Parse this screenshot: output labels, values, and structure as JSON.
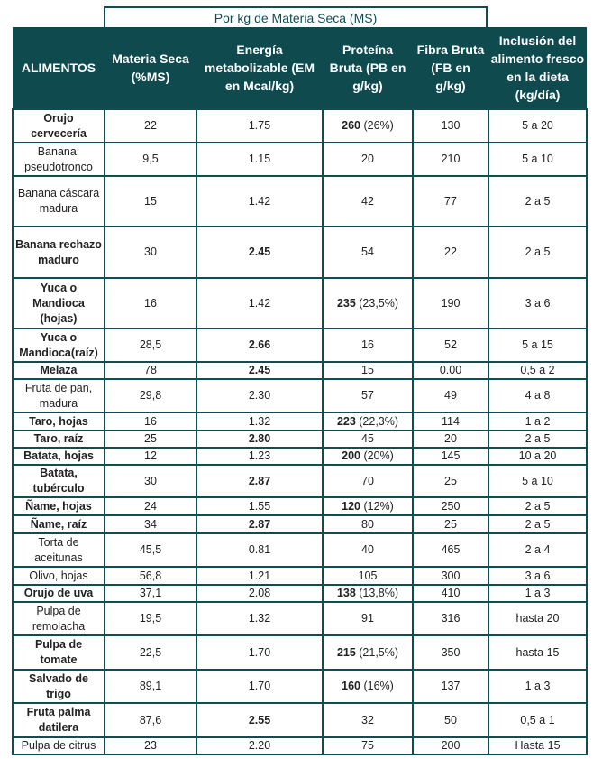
{
  "super_header": "Por kg de Materia Seca (MS)",
  "columns": [
    "ALIMENTOS",
    "Materia Seca (%MS)",
    "Energía metabolizable (EM en Mcal/kg)",
    "Proteína Bruta (PB en g/kg)",
    "Fibra Bruta (FB en g/kg)",
    "Inclusión del alimento fresco en la dieta (kg/día)"
  ],
  "colors": {
    "header_bg": "#0f4a4f",
    "border": "#0f4d52"
  },
  "rows": [
    {
      "name": "Orujo cervecería",
      "name_bold": true,
      "ms": "22",
      "em": "1.75",
      "em_bold": false,
      "pb": "260",
      "pb_bold": true,
      "pb_pct": " (26%)",
      "fb": "130",
      "inc": "5 a 20"
    },
    {
      "name": "Banana: pseudotronco",
      "name_bold": false,
      "ms": "9,5",
      "em": "1.15",
      "em_bold": false,
      "pb": "20",
      "pb_bold": false,
      "pb_pct": "",
      "fb": "210",
      "inc": "5 a 10"
    },
    {
      "name": "Banana cáscara madura",
      "name_bold": false,
      "ms": "15",
      "em": "1.42",
      "em_bold": false,
      "pb": "42",
      "pb_bold": false,
      "pb_pct": "",
      "fb": "77",
      "inc": "2 a 5"
    },
    {
      "name": "Banana rechazo maduro",
      "name_bold": true,
      "ms": "30",
      "em": "2.45",
      "em_bold": true,
      "pb": "54",
      "pb_bold": false,
      "pb_pct": "",
      "fb": "22",
      "inc": "2 a 5"
    },
    {
      "name": "Yuca o Mandioca (hojas)",
      "name_bold": true,
      "ms": "16",
      "em": "1.42",
      "em_bold": false,
      "pb": "235",
      "pb_bold": true,
      "pb_pct": " (23,5%)",
      "fb": "190",
      "inc": "3 a 6"
    },
    {
      "name": "Yuca o Mandioca(raíz)",
      "name_bold": true,
      "ms": "28,5",
      "em": "2.66",
      "em_bold": true,
      "pb": "16",
      "pb_bold": false,
      "pb_pct": "",
      "fb": "52",
      "inc": "5 a 15"
    },
    {
      "name": "Melaza",
      "name_bold": true,
      "ms": "78",
      "em": "2.45",
      "em_bold": true,
      "pb": "15",
      "pb_bold": false,
      "pb_pct": "",
      "fb": "0.00",
      "inc": "0,5 a 2"
    },
    {
      "name": "Fruta de pan, madura",
      "name_bold": false,
      "ms": "29,8",
      "em": "2.30",
      "em_bold": false,
      "pb": "57",
      "pb_bold": false,
      "pb_pct": "",
      "fb": "49",
      "inc": "4 a 8"
    },
    {
      "name": "Taro, hojas",
      "name_bold": true,
      "ms": "16",
      "em": "1.32",
      "em_bold": false,
      "pb": "223",
      "pb_bold": true,
      "pb_pct": " (22,3%)",
      "fb": "114",
      "inc": "1 a 2"
    },
    {
      "name": "Taro, raíz",
      "name_bold": true,
      "ms": "25",
      "em": "2.80",
      "em_bold": true,
      "pb": "45",
      "pb_bold": false,
      "pb_pct": "",
      "fb": "20",
      "inc": "2 a 5"
    },
    {
      "name": "Batata, hojas",
      "name_bold": true,
      "ms": "12",
      "em": "1.23",
      "em_bold": false,
      "pb": "200",
      "pb_bold": true,
      "pb_pct": " (20%)",
      "fb": "145",
      "inc": "10 a 20"
    },
    {
      "name": "Batata, tubérculo",
      "name_bold": true,
      "ms": "30",
      "em": "2.87",
      "em_bold": true,
      "pb": "70",
      "pb_bold": false,
      "pb_pct": "",
      "fb": "25",
      "inc": "5 a 10"
    },
    {
      "name": "Ñame, hojas",
      "name_bold": true,
      "ms": "24",
      "em": "1.55",
      "em_bold": false,
      "pb": "120",
      "pb_bold": true,
      "pb_pct": " (12%)",
      "fb": "250",
      "inc": "2 a 5"
    },
    {
      "name": "Ñame, raíz",
      "name_bold": true,
      "ms": "34",
      "em": "2.87",
      "em_bold": true,
      "pb": "80",
      "pb_bold": false,
      "pb_pct": "",
      "fb": "25",
      "inc": "2 a 5"
    },
    {
      "name": "Torta de aceitunas",
      "name_bold": false,
      "ms": "45,5",
      "em": "0.81",
      "em_bold": false,
      "pb": "40",
      "pb_bold": false,
      "pb_pct": "",
      "fb": "465",
      "inc": "2 a 4"
    },
    {
      "name": "Olivo, hojas",
      "name_bold": false,
      "ms": "56,8",
      "em": "1.21",
      "em_bold": false,
      "pb": "105",
      "pb_bold": false,
      "pb_pct": "",
      "fb": "300",
      "inc": "3 a 6"
    },
    {
      "name": "Orujo de uva",
      "name_bold": true,
      "ms": "37,1",
      "em": "2.08",
      "em_bold": false,
      "pb": "138",
      "pb_bold": true,
      "pb_pct": " (13,8%)",
      "fb": "410",
      "inc": "1 a 3"
    },
    {
      "name": "Pulpa de remolacha",
      "name_bold": false,
      "ms": "19,5",
      "em": "1.32",
      "em_bold": false,
      "pb": "91",
      "pb_bold": false,
      "pb_pct": "",
      "fb": "316",
      "inc": "hasta 20"
    },
    {
      "name": "Pulpa de tomate",
      "name_bold": true,
      "ms": "22,5",
      "em": "1.70",
      "em_bold": false,
      "pb": "215",
      "pb_bold": true,
      "pb_pct": " (21,5%)",
      "fb": "350",
      "inc": "hasta 15"
    },
    {
      "name": "Salvado de trigo",
      "name_bold": true,
      "ms": "89,1",
      "em": "1.70",
      "em_bold": false,
      "pb": "160",
      "pb_bold": true,
      "pb_pct": " (16%)",
      "fb": "137",
      "inc": "1 a 3"
    },
    {
      "name": "Fruta palma datilera",
      "name_bold": true,
      "ms": "87,6",
      "em": "2.55",
      "em_bold": true,
      "pb": "32",
      "pb_bold": false,
      "pb_pct": "",
      "fb": "50",
      "inc": "0,5 a 1"
    },
    {
      "name": "Pulpa de citrus",
      "name_bold": false,
      "ms": "23",
      "em": "2.20",
      "em_bold": false,
      "pb": "75",
      "pb_bold": false,
      "pb_pct": "",
      "fb": "200",
      "inc": "Hasta 15"
    }
  ]
}
